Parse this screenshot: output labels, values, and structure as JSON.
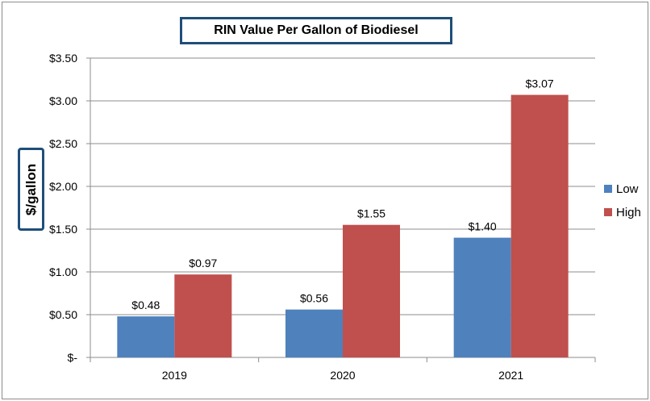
{
  "chart_data": {
    "type": "bar",
    "title": "RIN Value Per Gallon of Biodiesel",
    "ylabel": "$/gallon",
    "xlabel": "",
    "categories": [
      "2019",
      "2020",
      "2021"
    ],
    "series": [
      {
        "name": "Low",
        "values": [
          0.48,
          0.56,
          1.4
        ],
        "labels": [
          "$0.48",
          "$0.56",
          "$1.40"
        ],
        "color": "#4f81bd"
      },
      {
        "name": "High",
        "values": [
          0.97,
          1.55,
          3.07
        ],
        "labels": [
          "$0.97",
          "$1.55",
          "$3.07"
        ],
        "color": "#c0504d"
      }
    ],
    "ylim": [
      0,
      3.5
    ],
    "yticks": [
      0,
      0.5,
      1.0,
      1.5,
      2.0,
      2.5,
      3.0,
      3.5
    ],
    "ytick_labels": [
      "$-",
      "$0.50",
      "$1.00",
      "$1.50",
      "$2.00",
      "$2.50",
      "$3.00",
      "$3.50"
    ],
    "grid": true,
    "legend_position": "right"
  }
}
